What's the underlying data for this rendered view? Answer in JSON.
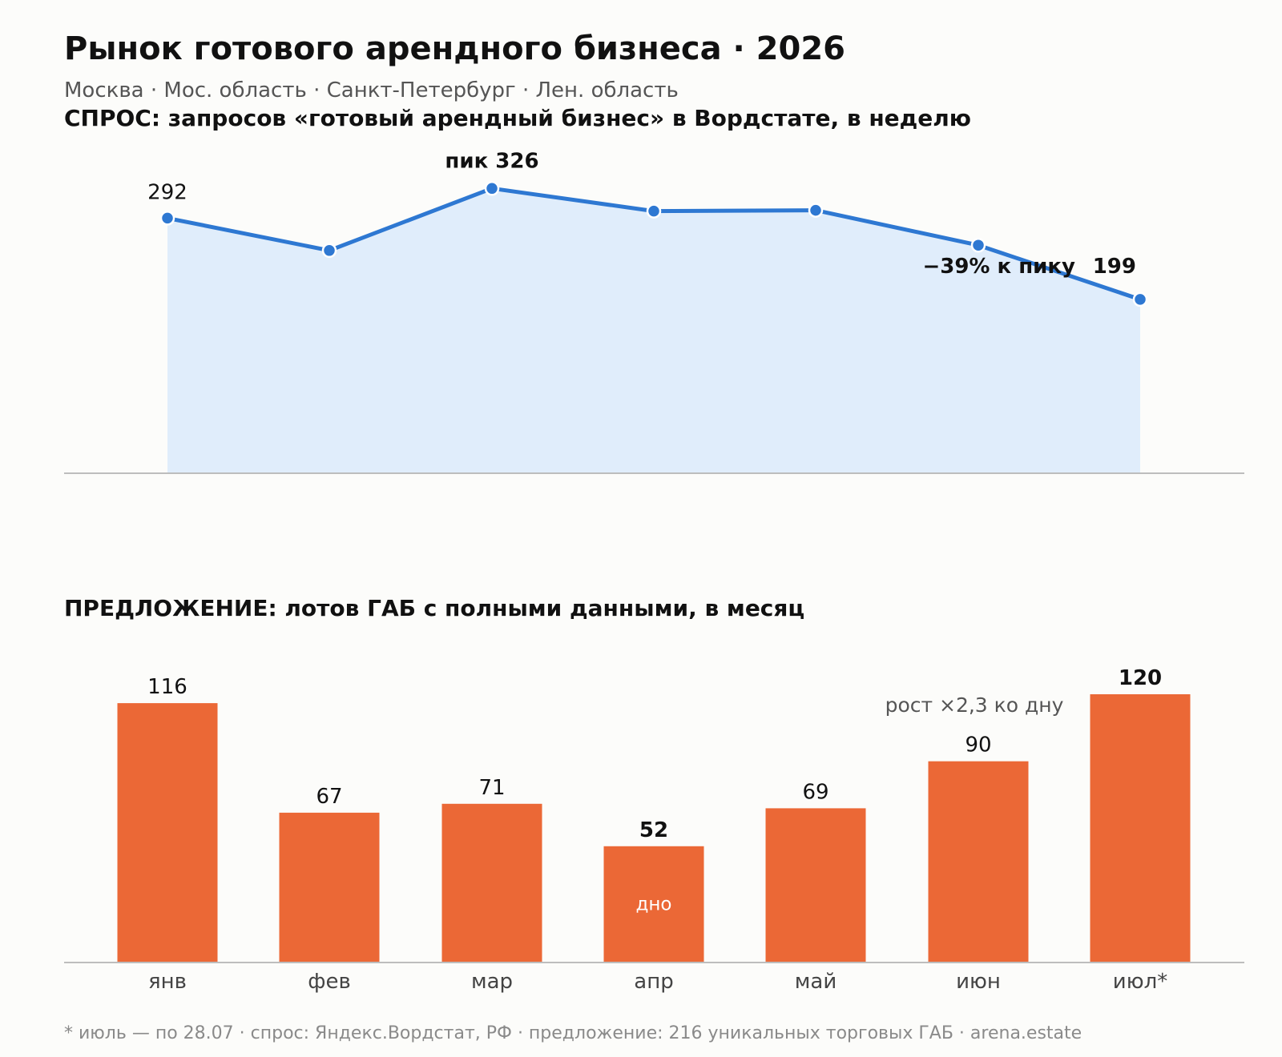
{
  "header": {
    "title": "Рынок готового арендного бизнеса · 2026",
    "subtitle": "Москва · Мос. область · Санкт-Петербург · Лен. область"
  },
  "footnote": "* июль — по 28.07 · спрос: Яндекс.Вордстат, РФ · предложение: 216 уникальных торговых ГАБ · arena.estate",
  "chart_data": [
    {
      "type": "area",
      "title": "СПРОС: запросов «готовый арендный бизнес» в Вордстате, в неделю",
      "values": [
        292,
        255,
        326,
        300,
        301,
        261,
        199
      ],
      "labels": [
        "292",
        "",
        "",
        "",
        "",
        "",
        "199"
      ],
      "annotations": [
        {
          "index": 2,
          "text": "пик 326"
        },
        {
          "index": 6,
          "text": "−39% к пику"
        }
      ],
      "ylim": [
        0,
        340
      ],
      "grid": false,
      "color": "#2e78d2",
      "fill_color": "#e0edfb"
    },
    {
      "type": "bar",
      "title": "ПРЕДЛОЖЕНИЕ: лотов ГАБ с полными данными, в месяц",
      "categories": [
        "янв",
        "фев",
        "мар",
        "апр",
        "май",
        "июн",
        "июл*"
      ],
      "values": [
        116,
        67,
        71,
        52,
        69,
        90,
        120
      ],
      "labels": [
        "116",
        "67",
        "71",
        "52",
        "69",
        "90",
        "120"
      ],
      "bold_labels": [
        3,
        6
      ],
      "in_bar_label": {
        "index": 3,
        "text": "дно"
      },
      "annotation": {
        "index": 5,
        "text": "рост ×2,3 ко дну"
      },
      "ylim": [
        0,
        125
      ],
      "grid": false,
      "color": "#eb6836"
    }
  ]
}
